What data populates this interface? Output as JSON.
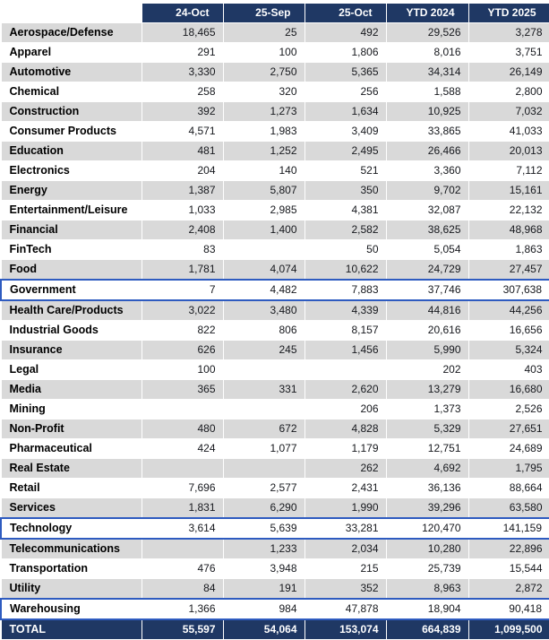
{
  "colors": {
    "header_bg": "#1f3864",
    "stripe_bg": "#d9d9d9",
    "highlight_border": "#2e5bc0",
    "total_bg": "#1f3864"
  },
  "chart_data": {
    "type": "table",
    "columns": [
      "24-Oct",
      "25-Sep",
      "25-Oct",
      "YTD 2024",
      "YTD 2025"
    ],
    "rows": [
      {
        "label": "Aerospace/Defense",
        "values": [
          "18,465",
          "25",
          "492",
          "29,526",
          "3,278"
        ]
      },
      {
        "label": "Apparel",
        "values": [
          "291",
          "100",
          "1,806",
          "8,016",
          "3,751"
        ]
      },
      {
        "label": "Automotive",
        "values": [
          "3,330",
          "2,750",
          "5,365",
          "34,314",
          "26,149"
        ]
      },
      {
        "label": "Chemical",
        "values": [
          "258",
          "320",
          "256",
          "1,588",
          "2,800"
        ]
      },
      {
        "label": "Construction",
        "values": [
          "392",
          "1,273",
          "1,634",
          "10,925",
          "7,032"
        ]
      },
      {
        "label": "Consumer Products",
        "values": [
          "4,571",
          "1,983",
          "3,409",
          "33,865",
          "41,033"
        ]
      },
      {
        "label": "Education",
        "values": [
          "481",
          "1,252",
          "2,495",
          "26,466",
          "20,013"
        ]
      },
      {
        "label": "Electronics",
        "values": [
          "204",
          "140",
          "521",
          "3,360",
          "7,112"
        ]
      },
      {
        "label": "Energy",
        "values": [
          "1,387",
          "5,807",
          "350",
          "9,702",
          "15,161"
        ]
      },
      {
        "label": "Entertainment/Leisure",
        "values": [
          "1,033",
          "2,985",
          "4,381",
          "32,087",
          "22,132"
        ]
      },
      {
        "label": "Financial",
        "values": [
          "2,408",
          "1,400",
          "2,582",
          "38,625",
          "48,968"
        ]
      },
      {
        "label": "FinTech",
        "values": [
          "83",
          "",
          "50",
          "5,054",
          "1,863"
        ]
      },
      {
        "label": "Food",
        "values": [
          "1,781",
          "4,074",
          "10,622",
          "24,729",
          "27,457"
        ]
      },
      {
        "label": "Government",
        "values": [
          "7",
          "4,482",
          "7,883",
          "37,746",
          "307,638"
        ]
      },
      {
        "label": "Health Care/Products",
        "values": [
          "3,022",
          "3,480",
          "4,339",
          "44,816",
          "44,256"
        ]
      },
      {
        "label": "Industrial Goods",
        "values": [
          "822",
          "806",
          "8,157",
          "20,616",
          "16,656"
        ]
      },
      {
        "label": "Insurance",
        "values": [
          "626",
          "245",
          "1,456",
          "5,990",
          "5,324"
        ]
      },
      {
        "label": "Legal",
        "values": [
          "100",
          "",
          "",
          "202",
          "403"
        ]
      },
      {
        "label": "Media",
        "values": [
          "365",
          "331",
          "2,620",
          "13,279",
          "16,680"
        ]
      },
      {
        "label": "Mining",
        "values": [
          "",
          "",
          "206",
          "1,373",
          "2,526"
        ]
      },
      {
        "label": "Non-Profit",
        "values": [
          "480",
          "672",
          "4,828",
          "5,329",
          "27,651"
        ]
      },
      {
        "label": "Pharmaceutical",
        "values": [
          "424",
          "1,077",
          "1,179",
          "12,751",
          "24,689"
        ]
      },
      {
        "label": "Real Estate",
        "values": [
          "",
          "",
          "262",
          "4,692",
          "1,795"
        ]
      },
      {
        "label": "Retail",
        "values": [
          "7,696",
          "2,577",
          "2,431",
          "36,136",
          "88,664"
        ]
      },
      {
        "label": "Services",
        "values": [
          "1,831",
          "6,290",
          "1,990",
          "39,296",
          "63,580"
        ]
      },
      {
        "label": "Technology",
        "values": [
          "3,614",
          "5,639",
          "33,281",
          "120,470",
          "141,159"
        ]
      },
      {
        "label": "Telecommunications",
        "values": [
          "",
          "1,233",
          "2,034",
          "10,280",
          "22,896"
        ]
      },
      {
        "label": "Transportation",
        "values": [
          "476",
          "3,948",
          "215",
          "25,739",
          "15,544"
        ]
      },
      {
        "label": "Utility",
        "values": [
          "84",
          "191",
          "352",
          "8,963",
          "2,872"
        ]
      },
      {
        "label": "Warehousing",
        "values": [
          "1,366",
          "984",
          "47,878",
          "18,904",
          "90,418"
        ]
      }
    ],
    "highlighted_rows": [
      "Government",
      "Technology",
      "Warehousing"
    ],
    "total": {
      "label": "TOTAL",
      "values": [
        "55,597",
        "54,064",
        "153,074",
        "664,839",
        "1,099,500"
      ]
    }
  }
}
